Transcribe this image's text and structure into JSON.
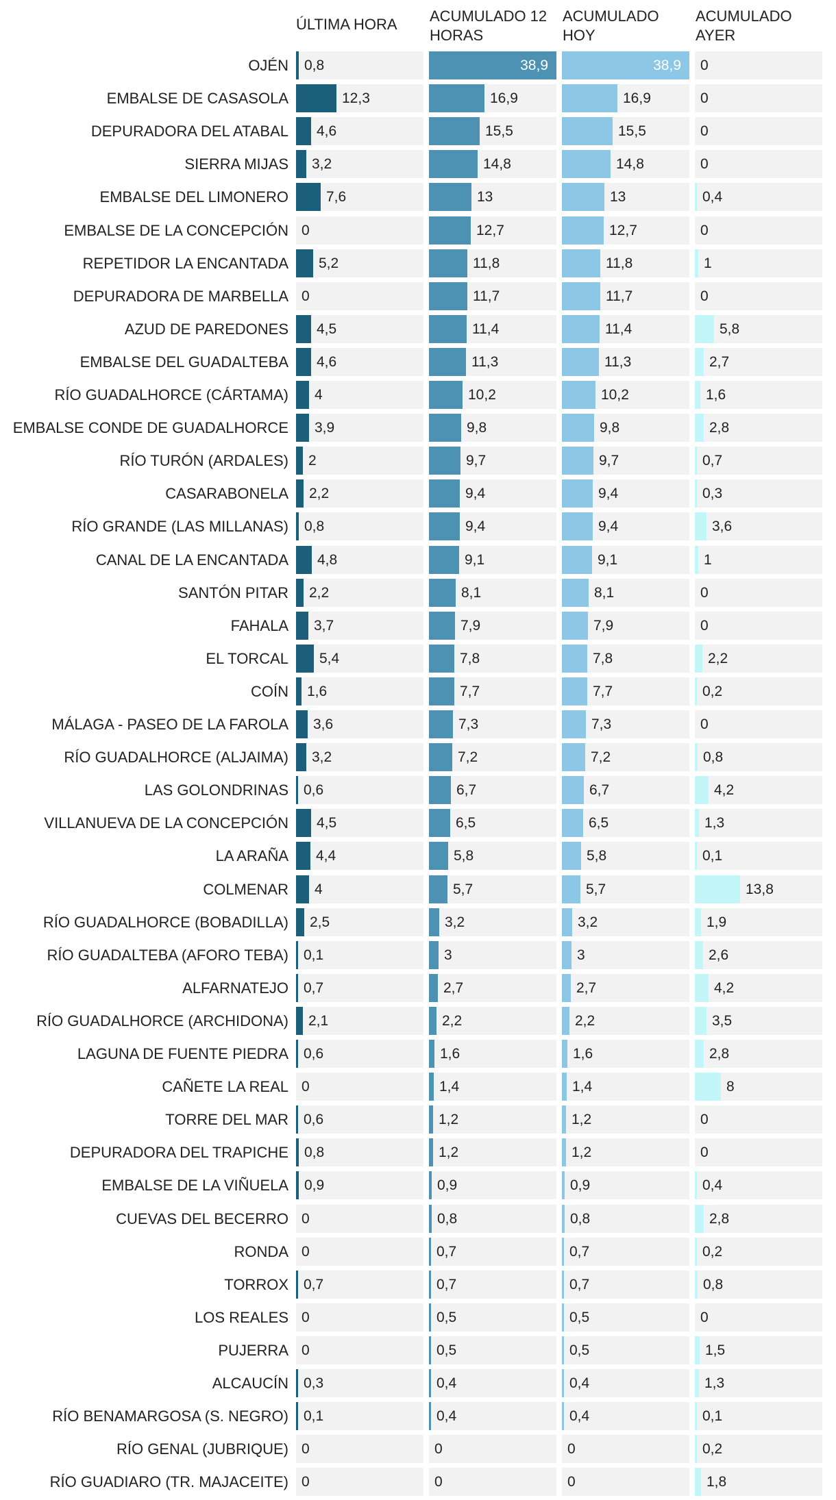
{
  "chart_data": {
    "type": "table",
    "columns": [
      "ÚLTIMA HORA",
      "ACUMULADO 12 HORAS",
      "ACUMULADO HOY",
      "ACUMULADO AYER"
    ],
    "column_colors": [
      "#1b5f7b",
      "#4e92b3",
      "#8cc7e5",
      "#c3f6f9"
    ],
    "scale_max": 38.9,
    "rows": [
      {
        "name": "OJÉN",
        "values": [
          "0,8",
          "38,9",
          "38,9",
          "0"
        ]
      },
      {
        "name": "EMBALSE DE CASASOLA",
        "values": [
          "12,3",
          "16,9",
          "16,9",
          "0"
        ]
      },
      {
        "name": "DEPURADORA DEL ATABAL",
        "values": [
          "4,6",
          "15,5",
          "15,5",
          "0"
        ]
      },
      {
        "name": "SIERRA MIJAS",
        "values": [
          "3,2",
          "14,8",
          "14,8",
          "0"
        ]
      },
      {
        "name": "EMBALSE DEL LIMONERO",
        "values": [
          "7,6",
          "13",
          "13",
          "0,4"
        ]
      },
      {
        "name": "EMBALSE DE LA CONCEPCIÓN",
        "values": [
          "0",
          "12,7",
          "12,7",
          "0"
        ]
      },
      {
        "name": "REPETIDOR LA ENCANTADA",
        "values": [
          "5,2",
          "11,8",
          "11,8",
          "1"
        ]
      },
      {
        "name": "DEPURADORA DE MARBELLA",
        "values": [
          "0",
          "11,7",
          "11,7",
          "0"
        ]
      },
      {
        "name": "AZUD DE PAREDONES",
        "values": [
          "4,5",
          "11,4",
          "11,4",
          "5,8"
        ]
      },
      {
        "name": "EMBALSE DEL GUADALTEBA",
        "values": [
          "4,6",
          "11,3",
          "11,3",
          "2,7"
        ]
      },
      {
        "name": "RÍO GUADALHORCE (CÁRTAMA)",
        "values": [
          "4",
          "10,2",
          "10,2",
          "1,6"
        ]
      },
      {
        "name": "EMBALSE CONDE DE GUADALHORCE",
        "values": [
          "3,9",
          "9,8",
          "9,8",
          "2,8"
        ]
      },
      {
        "name": "RÍO TURÓN (ARDALES)",
        "values": [
          "2",
          "9,7",
          "9,7",
          "0,7"
        ]
      },
      {
        "name": "CASARABONELA",
        "values": [
          "2,2",
          "9,4",
          "9,4",
          "0,3"
        ]
      },
      {
        "name": "RÍO GRANDE (LAS MILLANAS)",
        "values": [
          "0,8",
          "9,4",
          "9,4",
          "3,6"
        ]
      },
      {
        "name": "CANAL DE LA ENCANTADA",
        "values": [
          "4,8",
          "9,1",
          "9,1",
          "1"
        ]
      },
      {
        "name": "SANTÓN PITAR",
        "values": [
          "2,2",
          "8,1",
          "8,1",
          "0"
        ]
      },
      {
        "name": "FAHALA",
        "values": [
          "3,7",
          "7,9",
          "7,9",
          "0"
        ]
      },
      {
        "name": "EL TORCAL",
        "values": [
          "5,4",
          "7,8",
          "7,8",
          "2,2"
        ]
      },
      {
        "name": "COÍN",
        "values": [
          "1,6",
          "7,7",
          "7,7",
          "0,2"
        ]
      },
      {
        "name": "MÁLAGA - PASEO DE LA FAROLA",
        "values": [
          "3,6",
          "7,3",
          "7,3",
          "0"
        ]
      },
      {
        "name": "RÍO GUADALHORCE (ALJAIMA)",
        "values": [
          "3,2",
          "7,2",
          "7,2",
          "0,8"
        ]
      },
      {
        "name": "LAS GOLONDRINAS",
        "values": [
          "0,6",
          "6,7",
          "6,7",
          "4,2"
        ]
      },
      {
        "name": "VILLANUEVA DE LA CONCEPCIÓN",
        "values": [
          "4,5",
          "6,5",
          "6,5",
          "1,3"
        ]
      },
      {
        "name": "LA ARAÑA",
        "values": [
          "4,4",
          "5,8",
          "5,8",
          "0,1"
        ]
      },
      {
        "name": "COLMENAR",
        "values": [
          "4",
          "5,7",
          "5,7",
          "13,8"
        ]
      },
      {
        "name": "RÍO GUADALHORCE (BOBADILLA)",
        "values": [
          "2,5",
          "3,2",
          "3,2",
          "1,9"
        ]
      },
      {
        "name": "RÍO GUADALTEBA (AFORO TEBA)",
        "values": [
          "0,1",
          "3",
          "3",
          "2,6"
        ]
      },
      {
        "name": "ALFARNATEJO",
        "values": [
          "0,7",
          "2,7",
          "2,7",
          "4,2"
        ]
      },
      {
        "name": "RÍO GUADALHORCE (ARCHIDONA)",
        "values": [
          "2,1",
          "2,2",
          "2,2",
          "3,5"
        ]
      },
      {
        "name": "LAGUNA DE FUENTE PIEDRA",
        "values": [
          "0,6",
          "1,6",
          "1,6",
          "2,8"
        ]
      },
      {
        "name": "CAÑETE LA REAL",
        "values": [
          "0",
          "1,4",
          "1,4",
          "8"
        ]
      },
      {
        "name": "TORRE DEL MAR",
        "values": [
          "0,6",
          "1,2",
          "1,2",
          "0"
        ]
      },
      {
        "name": "DEPURADORA DEL TRAPICHE",
        "values": [
          "0,8",
          "1,2",
          "1,2",
          "0"
        ]
      },
      {
        "name": "EMBALSE DE LA VIÑUELA",
        "values": [
          "0,9",
          "0,9",
          "0,9",
          "0,4"
        ]
      },
      {
        "name": "CUEVAS DEL BECERRO",
        "values": [
          "0",
          "0,8",
          "0,8",
          "2,8"
        ]
      },
      {
        "name": "RONDA",
        "values": [
          "0",
          "0,7",
          "0,7",
          "0,2"
        ]
      },
      {
        "name": "TORROX",
        "values": [
          "0,7",
          "0,7",
          "0,7",
          "0,8"
        ]
      },
      {
        "name": "LOS REALES",
        "values": [
          "0",
          "0,5",
          "0,5",
          "0"
        ]
      },
      {
        "name": "PUJERRA",
        "values": [
          "0",
          "0,5",
          "0,5",
          "1,5"
        ]
      },
      {
        "name": "ALCAUCÍN",
        "values": [
          "0,3",
          "0,4",
          "0,4",
          "1,3"
        ]
      },
      {
        "name": "RÍO BENAMARGOSA (S. NEGRO)",
        "values": [
          "0,1",
          "0,4",
          "0,4",
          "0,1"
        ]
      },
      {
        "name": "RÍO GENAL (JUBRIQUE)",
        "values": [
          "0",
          "0",
          "0",
          "0,2"
        ]
      },
      {
        "name": "RÍO GUADIARO (TR. MAJACEITE)",
        "values": [
          "0",
          "0",
          "0",
          "1,8"
        ]
      }
    ]
  }
}
